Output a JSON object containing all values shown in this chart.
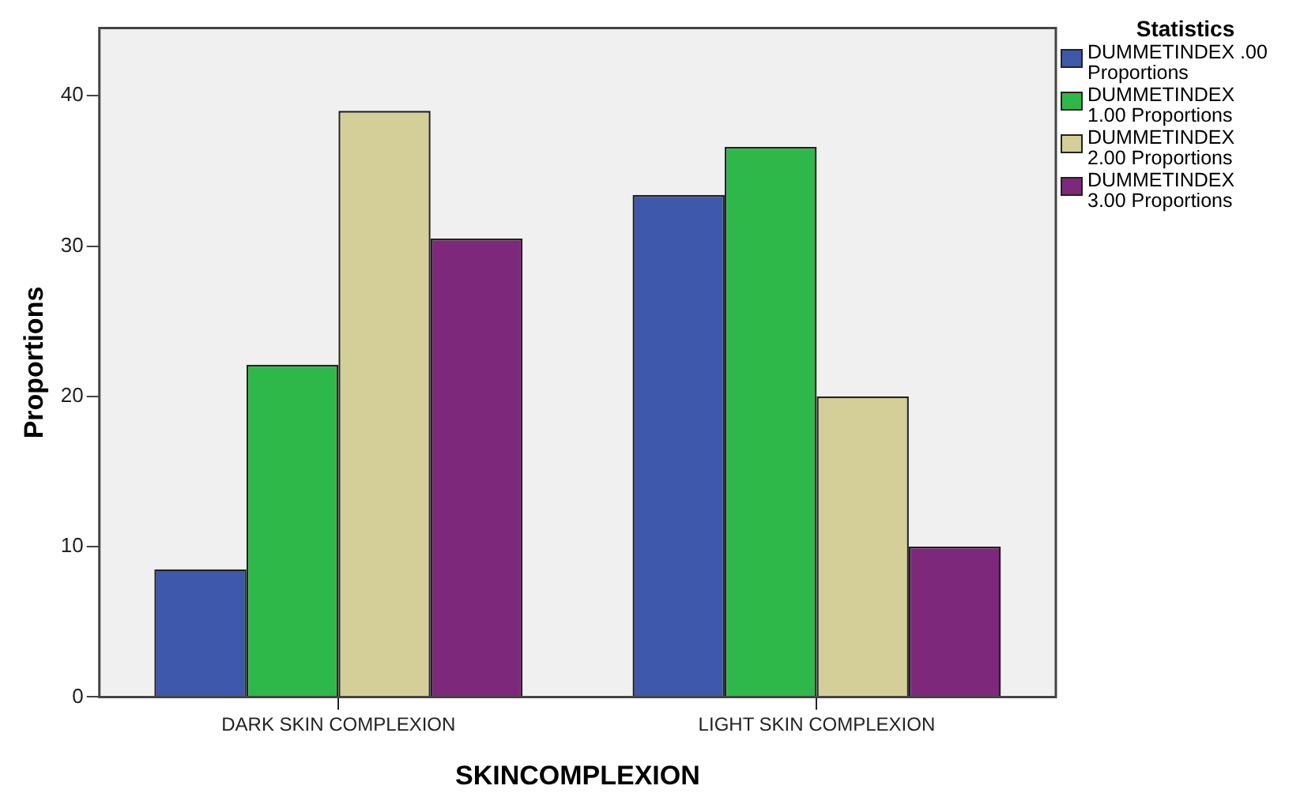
{
  "chart_data": {
    "type": "bar",
    "xlabel": "SKINCOMPLEXION",
    "ylabel": "Proportions",
    "legend_title": "Statistics",
    "categories": [
      "DARK SKIN COMPLEXION",
      "LIGHT SKIN COMPLEXION"
    ],
    "series": [
      {
        "name": "DUMMETINDEX .00 Proportions",
        "color": "#3e58ac",
        "values": [
          8.5,
          33.4
        ]
      },
      {
        "name": "DUMMETINDEX 1.00 Proportions",
        "color": "#2fb84a",
        "values": [
          22.1,
          36.6
        ]
      },
      {
        "name": "DUMMETINDEX 2.00 Proportions",
        "color": "#d4cf98",
        "values": [
          39.0,
          20.0
        ]
      },
      {
        "name": "DUMMETINDEX 3.00 Proportions",
        "color": "#7d287b",
        "values": [
          30.5,
          10.0
        ]
      }
    ],
    "ylim": [
      0,
      44.5
    ],
    "yticks": [
      0,
      10,
      20,
      30,
      40
    ],
    "grid": false,
    "legend": "top right"
  }
}
